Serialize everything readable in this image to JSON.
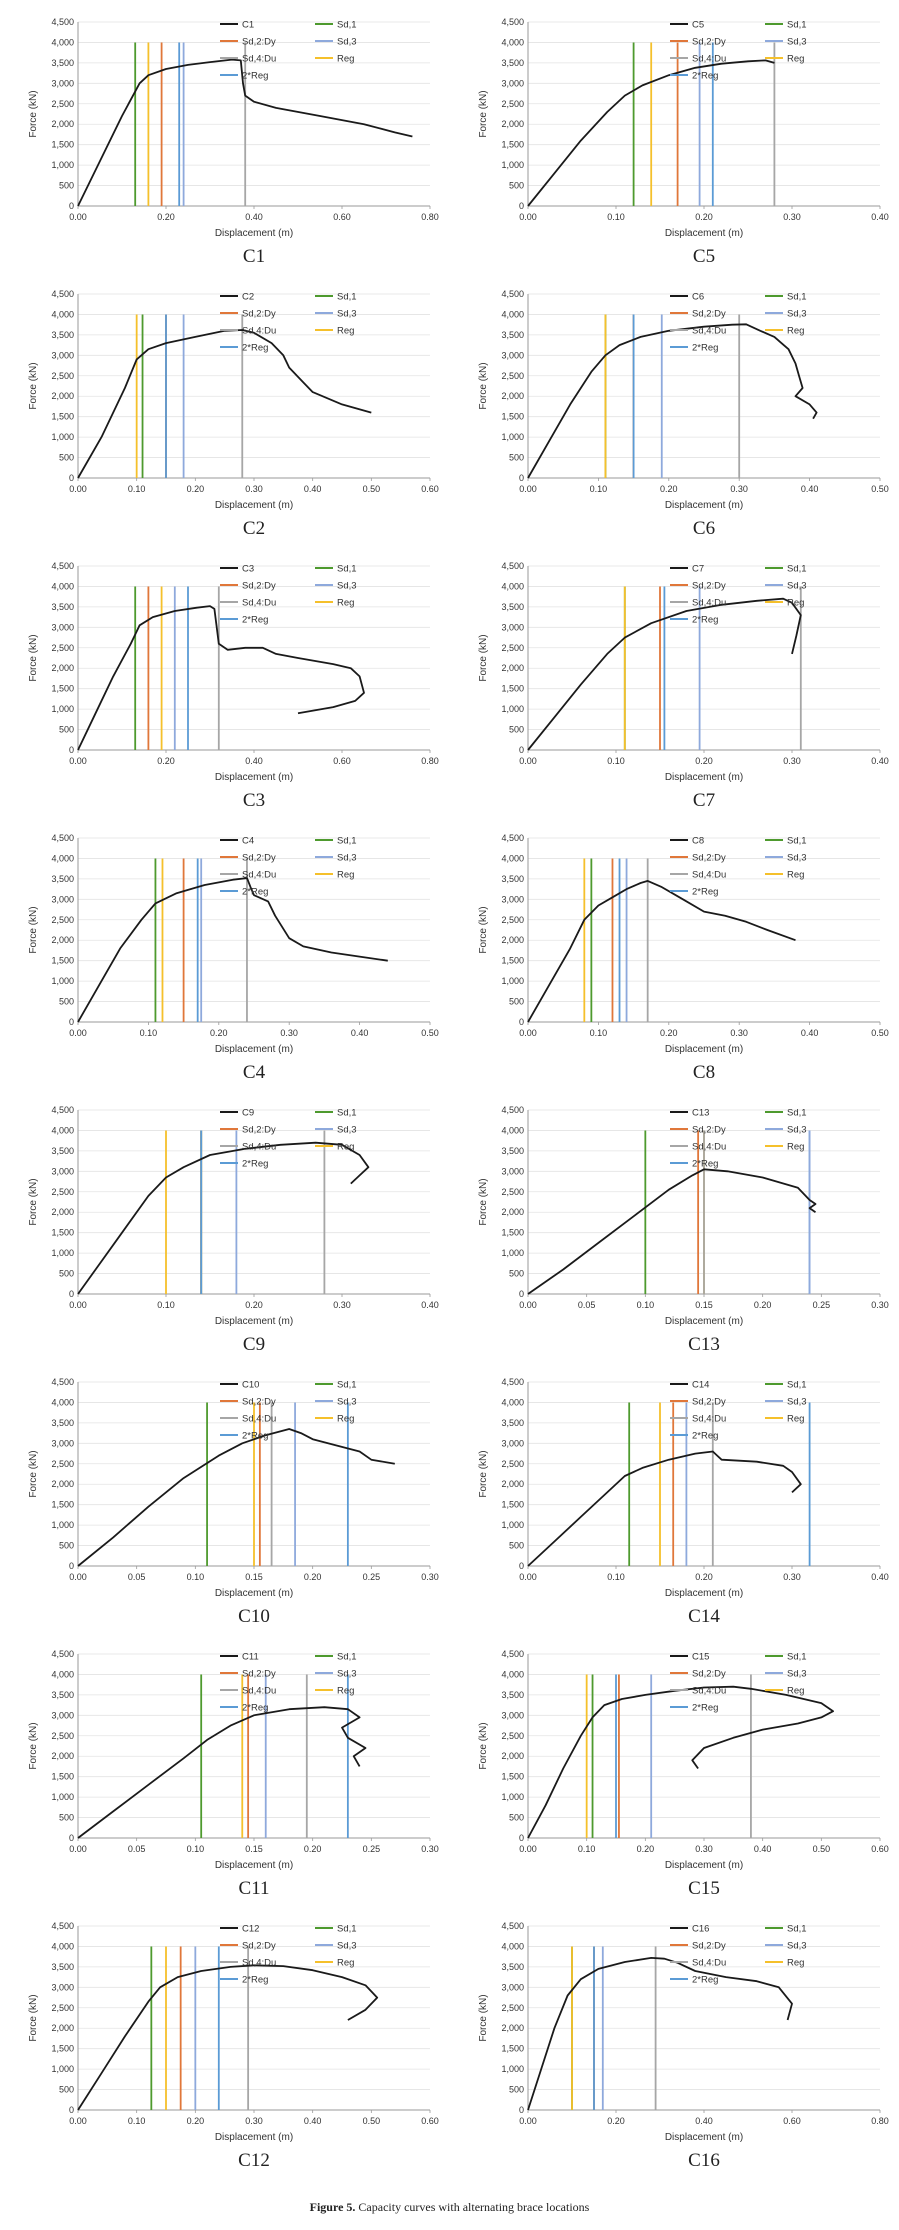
{
  "colors": {
    "curve": "#1a1a1a",
    "sd1": "#4e9a2e",
    "sd2": "#e0773a",
    "sd3": "#8ea9dc",
    "sd4": "#a6a6a6",
    "reg": "#f5c02b",
    "reg2": "#5b9bd5"
  },
  "legend_labels": {
    "sd1": "Sd,1",
    "sd2": "Sd,2:Dy",
    "sd3": "Sd,3",
    "sd4": "Sd,4:Du",
    "reg": "Reg",
    "reg2": "2*Reg"
  },
  "figure_caption": {
    "label": "Figure 5.",
    "text": " Capacity curves with alternating brace locations"
  },
  "chart_data": [
    {
      "type": "line",
      "caption": "C1",
      "series_name": "C1",
      "xlabel": "Displacement (m)",
      "ylabel": "Force (kN)",
      "xlim": [
        0,
        0.8
      ],
      "xstep": 0.2,
      "xdec": 2,
      "ylim": [
        0,
        4500
      ],
      "ystep": 500,
      "x": [
        0,
        0.05,
        0.1,
        0.14,
        0.16,
        0.2,
        0.25,
        0.3,
        0.35,
        0.37,
        0.375,
        0.38,
        0.4,
        0.45,
        0.55,
        0.65,
        0.72,
        0.76
      ],
      "y": [
        0,
        1100,
        2200,
        3000,
        3200,
        3350,
        3450,
        3520,
        3580,
        3560,
        3000,
        2700,
        2550,
        2400,
        2200,
        2000,
        1800,
        1700
      ],
      "markers": {
        "sd1": 0.13,
        "sd2": 0.19,
        "sd3": 0.24,
        "sd4": 0.38,
        "reg": 0.16,
        "reg2": 0.23
      }
    },
    {
      "type": "line",
      "caption": "C5",
      "series_name": "C5",
      "xlabel": "Displacement (m)",
      "ylabel": "Force (kN)",
      "xlim": [
        0,
        0.4
      ],
      "xstep": 0.1,
      "xdec": 2,
      "ylim": [
        0,
        4500
      ],
      "ystep": 500,
      "x": [
        0,
        0.03,
        0.06,
        0.09,
        0.11,
        0.13,
        0.16,
        0.19,
        0.22,
        0.25,
        0.27,
        0.28
      ],
      "y": [
        0,
        800,
        1600,
        2300,
        2700,
        2950,
        3200,
        3380,
        3480,
        3540,
        3560,
        3500
      ],
      "markers": {
        "sd1": 0.12,
        "sd2": 0.17,
        "sd3": 0.195,
        "sd4": 0.28,
        "reg": 0.14,
        "reg2": 0.21
      }
    },
    {
      "type": "line",
      "caption": "C2",
      "series_name": "C2",
      "xlabel": "Displacement (m)",
      "ylabel": "Force (kN)",
      "xlim": [
        0,
        0.6
      ],
      "xstep": 0.1,
      "xdec": 2,
      "ylim": [
        0,
        4500
      ],
      "ystep": 500,
      "x": [
        0,
        0.04,
        0.08,
        0.1,
        0.12,
        0.15,
        0.2,
        0.25,
        0.28,
        0.3,
        0.33,
        0.35,
        0.36,
        0.38,
        0.4,
        0.45,
        0.5
      ],
      "y": [
        0,
        1000,
        2200,
        2900,
        3150,
        3300,
        3450,
        3600,
        3620,
        3550,
        3300,
        3000,
        2700,
        2400,
        2100,
        1800,
        1600
      ],
      "markers": {
        "sd1": 0.11,
        "sd2": 0.15,
        "sd3": 0.18,
        "sd4": 0.28,
        "reg": 0.1,
        "reg2": 0.15
      }
    },
    {
      "type": "line",
      "caption": "C6",
      "series_name": "C6",
      "xlabel": "Displacement (m)",
      "ylabel": "Force (kN)",
      "xlim": [
        0,
        0.5
      ],
      "xstep": 0.1,
      "xdec": 2,
      "ylim": [
        0,
        4500
      ],
      "ystep": 500,
      "x": [
        0,
        0.03,
        0.06,
        0.09,
        0.11,
        0.13,
        0.16,
        0.2,
        0.25,
        0.29,
        0.31,
        0.33,
        0.35,
        0.36,
        0.37,
        0.38,
        0.385,
        0.39,
        0.38,
        0.4,
        0.41,
        0.405
      ],
      "y": [
        0,
        900,
        1800,
        2600,
        3000,
        3250,
        3450,
        3600,
        3700,
        3750,
        3760,
        3600,
        3450,
        3300,
        3150,
        2800,
        2500,
        2200,
        2000,
        1800,
        1600,
        1450
      ],
      "markers": {
        "sd1": 0.11,
        "sd2": 0.15,
        "sd3": 0.19,
        "sd4": 0.3,
        "reg": 0.11,
        "reg2": 0.15
      }
    },
    {
      "type": "line",
      "caption": "C3",
      "series_name": "C3",
      "xlabel": "Displacement (m)",
      "ylabel": "Force (kN)",
      "xlim": [
        0,
        0.8
      ],
      "xstep": 0.2,
      "xdec": 2,
      "ylim": [
        0,
        4500
      ],
      "ystep": 500,
      "x": [
        0,
        0.04,
        0.08,
        0.12,
        0.14,
        0.17,
        0.22,
        0.27,
        0.3,
        0.31,
        0.32,
        0.34,
        0.38,
        0.42,
        0.45,
        0.5,
        0.58,
        0.62,
        0.64,
        0.65,
        0.63,
        0.58,
        0.5
      ],
      "y": [
        0,
        900,
        1800,
        2600,
        3050,
        3250,
        3400,
        3480,
        3520,
        3450,
        2600,
        2450,
        2500,
        2500,
        2350,
        2250,
        2100,
        2000,
        1800,
        1400,
        1200,
        1050,
        900
      ],
      "markers": {
        "sd1": 0.13,
        "sd2": 0.16,
        "sd3": 0.22,
        "sd4": 0.32,
        "reg": 0.19,
        "reg2": 0.25
      }
    },
    {
      "type": "line",
      "caption": "C7",
      "series_name": "C7",
      "xlabel": "Displacement (m)",
      "ylabel": "Force (kN)",
      "xlim": [
        0,
        0.4
      ],
      "xstep": 0.1,
      "xdec": 2,
      "ylim": [
        0,
        4500
      ],
      "ystep": 500,
      "x": [
        0,
        0.03,
        0.06,
        0.09,
        0.11,
        0.14,
        0.18,
        0.22,
        0.26,
        0.29,
        0.3,
        0.31,
        0.305,
        0.3
      ],
      "y": [
        0,
        800,
        1600,
        2350,
        2750,
        3100,
        3400,
        3550,
        3650,
        3700,
        3600,
        3300,
        2800,
        2350
      ],
      "markers": {
        "sd1": 0.11,
        "sd2": 0.15,
        "sd3": 0.195,
        "sd4": 0.31,
        "reg": 0.11,
        "reg2": 0.155
      }
    },
    {
      "type": "line",
      "caption": "C4",
      "series_name": "C4",
      "xlabel": "Displacement (m)",
      "ylabel": "Force (kN)",
      "xlim": [
        0,
        0.5
      ],
      "xstep": 0.1,
      "xdec": 2,
      "ylim": [
        0,
        4500
      ],
      "ystep": 500,
      "x": [
        0,
        0.03,
        0.06,
        0.09,
        0.11,
        0.14,
        0.18,
        0.22,
        0.24,
        0.245,
        0.25,
        0.27,
        0.28,
        0.3,
        0.32,
        0.36,
        0.4,
        0.44
      ],
      "y": [
        0,
        900,
        1800,
        2500,
        2900,
        3150,
        3350,
        3480,
        3520,
        3300,
        3100,
        2950,
        2600,
        2050,
        1850,
        1700,
        1600,
        1500
      ],
      "markers": {
        "sd1": 0.11,
        "sd2": 0.15,
        "sd3": 0.175,
        "sd4": 0.24,
        "reg": 0.12,
        "reg2": 0.17
      }
    },
    {
      "type": "line",
      "caption": "C8",
      "series_name": "C8",
      "xlabel": "Displacement (m)",
      "ylabel": "Force (kN)",
      "xlim": [
        0,
        0.5
      ],
      "xstep": 0.1,
      "xdec": 2,
      "ylim": [
        0,
        4500
      ],
      "ystep": 500,
      "x": [
        0,
        0.03,
        0.06,
        0.08,
        0.1,
        0.12,
        0.14,
        0.16,
        0.17,
        0.19,
        0.22,
        0.25,
        0.28,
        0.31,
        0.34,
        0.38
      ],
      "y": [
        0,
        900,
        1800,
        2500,
        2850,
        3050,
        3250,
        3400,
        3450,
        3300,
        3000,
        2700,
        2600,
        2450,
        2250,
        2000
      ],
      "markers": {
        "sd1": 0.09,
        "sd2": 0.12,
        "sd3": 0.14,
        "sd4": 0.17,
        "reg": 0.08,
        "reg2": 0.13
      }
    },
    {
      "type": "line",
      "caption": "C9",
      "series_name": "C9",
      "xlabel": "Displacement (m)",
      "ylabel": "Force (kN)",
      "xlim": [
        0,
        0.4
      ],
      "xstep": 0.1,
      "xdec": 2,
      "ylim": [
        0,
        4500
      ],
      "ystep": 500,
      "x": [
        0,
        0.02,
        0.05,
        0.08,
        0.1,
        0.12,
        0.15,
        0.19,
        0.23,
        0.27,
        0.3,
        0.32,
        0.33,
        0.32,
        0.31
      ],
      "y": [
        0,
        600,
        1500,
        2400,
        2850,
        3100,
        3400,
        3550,
        3650,
        3700,
        3650,
        3400,
        3100,
        2900,
        2700
      ],
      "markers": {
        "sd1": 0.14,
        "sd2": 0.14,
        "sd3": 0.18,
        "sd4": 0.28,
        "reg": 0.1,
        "reg2": 0.14
      }
    },
    {
      "type": "line",
      "caption": "C13",
      "series_name": "C13",
      "xlabel": "Displacement (m)",
      "ylabel": "Force (kN)",
      "xlim": [
        0,
        0.3
      ],
      "xstep": 0.05,
      "xdec": 2,
      "ylim": [
        0,
        4500
      ],
      "ystep": 500,
      "x": [
        0,
        0.03,
        0.06,
        0.09,
        0.12,
        0.14,
        0.15,
        0.17,
        0.2,
        0.23,
        0.24,
        0.245,
        0.24,
        0.245
      ],
      "y": [
        0,
        600,
        1250,
        1900,
        2550,
        2900,
        3050,
        3000,
        2850,
        2600,
        2300,
        2200,
        2100,
        2000
      ],
      "markers": {
        "sd1": 0.1,
        "sd2": 0.145,
        "sd3": 0.24,
        "sd4": 0.15,
        "reg": 0.15,
        "reg2": 0.24
      }
    },
    {
      "type": "line",
      "caption": "C10",
      "series_name": "C10",
      "xlabel": "Displacement (m)",
      "ylabel": "Force (kN)",
      "xlim": [
        0,
        0.3
      ],
      "xstep": 0.05,
      "xdec": 2,
      "ylim": [
        0,
        4500
      ],
      "ystep": 500,
      "x": [
        0,
        0.03,
        0.06,
        0.09,
        0.12,
        0.14,
        0.16,
        0.18,
        0.19,
        0.2,
        0.22,
        0.24,
        0.25,
        0.27
      ],
      "y": [
        0,
        700,
        1450,
        2150,
        2700,
        3000,
        3200,
        3350,
        3250,
        3100,
        2950,
        2800,
        2600,
        2500
      ],
      "markers": {
        "sd1": 0.11,
        "sd2": 0.155,
        "sd3": 0.185,
        "sd4": 0.165,
        "reg": 0.15,
        "reg2": 0.23
      }
    },
    {
      "type": "line",
      "caption": "C14",
      "series_name": "C14",
      "xlabel": "Displacement (m)",
      "ylabel": "Force (kN)",
      "xlim": [
        0,
        0.4
      ],
      "xstep": 0.1,
      "xdec": 2,
      "ylim": [
        0,
        4500
      ],
      "ystep": 500,
      "x": [
        0,
        0.03,
        0.06,
        0.09,
        0.11,
        0.13,
        0.16,
        0.19,
        0.21,
        0.215,
        0.22,
        0.26,
        0.29,
        0.3,
        0.31,
        0.3
      ],
      "y": [
        0,
        600,
        1200,
        1800,
        2200,
        2400,
        2600,
        2750,
        2800,
        2700,
        2600,
        2550,
        2450,
        2300,
        2000,
        1800
      ],
      "markers": {
        "sd1": 0.115,
        "sd2": 0.165,
        "sd3": 0.18,
        "sd4": 0.21,
        "reg": 0.15,
        "reg2": 0.32
      }
    },
    {
      "type": "line",
      "caption": "C11",
      "series_name": "C11",
      "xlabel": "Displacement (m)",
      "ylabel": "Force (kN)",
      "xlim": [
        0,
        0.3
      ],
      "xstep": 0.05,
      "xdec": 2,
      "ylim": [
        0,
        4500
      ],
      "ystep": 500,
      "x": [
        0,
        0.03,
        0.06,
        0.09,
        0.11,
        0.13,
        0.15,
        0.18,
        0.21,
        0.23,
        0.24,
        0.225,
        0.23,
        0.245,
        0.235,
        0.24
      ],
      "y": [
        0,
        650,
        1300,
        1950,
        2400,
        2750,
        3000,
        3150,
        3200,
        3150,
        2950,
        2700,
        2450,
        2200,
        2000,
        1750
      ],
      "markers": {
        "sd1": 0.105,
        "sd2": 0.145,
        "sd3": 0.16,
        "sd4": 0.195,
        "reg": 0.14,
        "reg2": 0.23
      }
    },
    {
      "type": "line",
      "caption": "C15",
      "series_name": "C15",
      "xlabel": "Displacement (m)",
      "ylabel": "Force (kN)",
      "xlim": [
        0,
        0.6
      ],
      "xstep": 0.1,
      "xdec": 2,
      "ylim": [
        0,
        4500
      ],
      "ystep": 500,
      "x": [
        0,
        0.03,
        0.06,
        0.09,
        0.11,
        0.13,
        0.16,
        0.2,
        0.25,
        0.3,
        0.35,
        0.38,
        0.44,
        0.5,
        0.52,
        0.5,
        0.46,
        0.4,
        0.35,
        0.3,
        0.28,
        0.29
      ],
      "y": [
        0,
        800,
        1700,
        2500,
        2950,
        3250,
        3400,
        3500,
        3600,
        3680,
        3700,
        3650,
        3500,
        3300,
        3100,
        2950,
        2800,
        2650,
        2450,
        2200,
        1900,
        1700
      ],
      "markers": {
        "sd1": 0.11,
        "sd2": 0.155,
        "sd3": 0.21,
        "sd4": 0.38,
        "reg": 0.1,
        "reg2": 0.15
      }
    },
    {
      "type": "line",
      "caption": "C12",
      "series_name": "C12",
      "xlabel": "Displacement (m)",
      "ylabel": "Force (kN)",
      "xlim": [
        0,
        0.6
      ],
      "xstep": 0.1,
      "xdec": 2,
      "ylim": [
        0,
        4500
      ],
      "ystep": 500,
      "x": [
        0,
        0.04,
        0.08,
        0.12,
        0.14,
        0.17,
        0.21,
        0.26,
        0.3,
        0.35,
        0.4,
        0.45,
        0.49,
        0.51,
        0.49,
        0.46
      ],
      "y": [
        0,
        900,
        1800,
        2650,
        3000,
        3250,
        3400,
        3500,
        3540,
        3520,
        3420,
        3250,
        3050,
        2750,
        2450,
        2200
      ],
      "markers": {
        "sd1": 0.125,
        "sd2": 0.175,
        "sd3": 0.2,
        "sd4": 0.29,
        "reg": 0.15,
        "reg2": 0.24
      }
    },
    {
      "type": "line",
      "caption": "C16",
      "series_name": "C16",
      "xlabel": "Displacement (m)",
      "ylabel": "Force (kN)",
      "xlim": [
        0,
        0.8
      ],
      "xstep": 0.2,
      "xdec": 2,
      "ylim": [
        0,
        4500
      ],
      "ystep": 500,
      "x": [
        0,
        0.03,
        0.06,
        0.09,
        0.12,
        0.16,
        0.22,
        0.28,
        0.31,
        0.34,
        0.38,
        0.45,
        0.52,
        0.57,
        0.6,
        0.59
      ],
      "y": [
        0,
        1000,
        2000,
        2800,
        3200,
        3450,
        3620,
        3720,
        3700,
        3600,
        3400,
        3250,
        3150,
        3000,
        2600,
        2200
      ],
      "markers": {
        "sd1": 0.1,
        "sd2": 0.15,
        "sd3": 0.17,
        "sd4": 0.29,
        "reg": 0.1,
        "reg2": 0.15
      }
    }
  ]
}
